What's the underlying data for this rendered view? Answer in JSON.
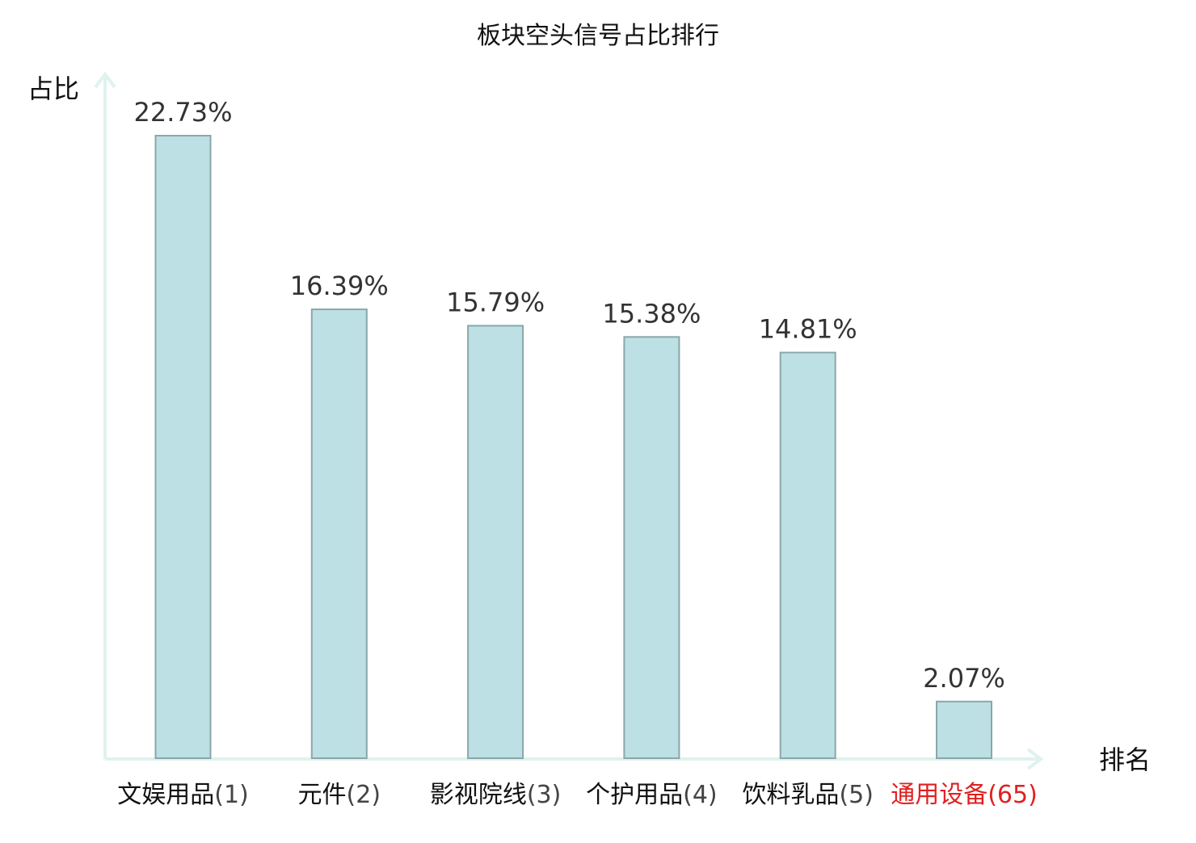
{
  "chart_data": {
    "type": "bar",
    "title": "板块空头信号占比排行",
    "ylabel": "占比",
    "xlabel": "排名",
    "categories": [
      "文娱用品",
      "元件",
      "影视院线",
      "个护用品",
      "饮料乳品",
      "通用设备"
    ],
    "ranks": [
      "(1)",
      "(2)",
      "(3)",
      "(4)",
      "(5)",
      "(65)"
    ],
    "values": [
      22.73,
      16.39,
      15.79,
      15.38,
      14.81,
      2.07
    ],
    "value_labels": [
      "22.73%",
      "16.39%",
      "15.79%",
      "15.38%",
      "14.81%",
      "2.07%"
    ],
    "highlight_index": 5,
    "ylim": [
      0,
      22.73
    ],
    "grid": false,
    "colors": {
      "bar_fill": "#bce0e3",
      "bar_stroke": "#8aa7aa",
      "axis": "#dff2ef",
      "highlight_text": "#e02020"
    }
  }
}
